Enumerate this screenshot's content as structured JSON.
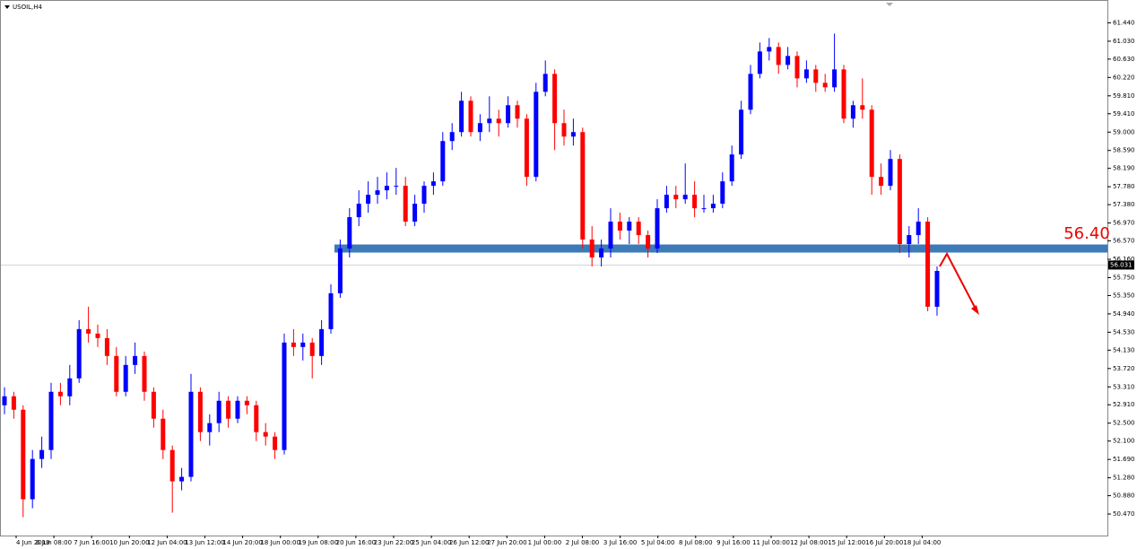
{
  "chart_data": {
    "type": "candlestick",
    "title": "USOIL,H4",
    "ylim": [
      49.99,
      61.95
    ],
    "yticks": [
      {
        "value": 61.44,
        "label": "61.440"
      },
      {
        "value": 61.03,
        "label": "61.030"
      },
      {
        "value": 60.63,
        "label": "60.630"
      },
      {
        "value": 60.22,
        "label": "60.220"
      },
      {
        "value": 59.81,
        "label": "59.810"
      },
      {
        "value": 59.41,
        "label": "59.410"
      },
      {
        "value": 59.0,
        "label": "59.000"
      },
      {
        "value": 58.59,
        "label": "58.590"
      },
      {
        "value": 58.19,
        "label": "58.190"
      },
      {
        "value": 57.78,
        "label": "57.780"
      },
      {
        "value": 57.38,
        "label": "57.380"
      },
      {
        "value": 56.97,
        "label": "56.970"
      },
      {
        "value": 56.57,
        "label": "56.570"
      },
      {
        "value": 56.16,
        "label": "56.160"
      },
      {
        "value": 55.75,
        "label": "55.750"
      },
      {
        "value": 55.35,
        "label": "55.350"
      },
      {
        "value": 54.94,
        "label": "54.940"
      },
      {
        "value": 54.53,
        "label": "54.530"
      },
      {
        "value": 54.13,
        "label": "54.130"
      },
      {
        "value": 53.72,
        "label": "53.720"
      },
      {
        "value": 53.31,
        "label": "53.310"
      },
      {
        "value": 52.91,
        "label": "52.910"
      },
      {
        "value": 52.5,
        "label": "52.500"
      },
      {
        "value": 52.1,
        "label": "52.100"
      },
      {
        "value": 51.69,
        "label": "51.690"
      },
      {
        "value": 51.28,
        "label": "51.280"
      },
      {
        "value": 50.88,
        "label": "50.880"
      },
      {
        "value": 50.47,
        "label": "50.470"
      }
    ],
    "xticks": [
      "4 Jun 2019",
      "6 Jun 08:00",
      "7 Jun 16:00",
      "10 Jun 20:00",
      "12 Jun 04:00",
      "13 Jun 12:00",
      "14 Jun 20:00",
      "18 Jun 00:00",
      "19 Jun 08:00",
      "20 Jun 16:00",
      "23 Jun 22:00",
      "25 Jun 04:00",
      "26 Jun 12:00",
      "27 Jun 20:00",
      "1 Jul 00:00",
      "2 Jul 08:00",
      "3 Jul 16:00",
      "5 Jul 04:00",
      "8 Jul 08:00",
      "9 Jul 16:00",
      "11 Jul 00:00",
      "12 Jul 08:00",
      "15 Jul 12:00",
      "16 Jul 20:00",
      "18 Jul 04:00"
    ],
    "up_color": "#0000ff",
    "down_color": "#ff0000",
    "last_price": 56.031,
    "support": {
      "value": 56.4,
      "label": "56.40",
      "color": "#3d7ab8"
    },
    "candles": [
      [
        52.9,
        53.3,
        52.7,
        53.1
      ],
      [
        53.1,
        53.2,
        52.6,
        52.8
      ],
      [
        52.8,
        52.9,
        50.4,
        50.8
      ],
      [
        50.8,
        51.9,
        50.6,
        51.7
      ],
      [
        51.7,
        52.2,
        51.5,
        51.9
      ],
      [
        51.9,
        53.4,
        51.7,
        53.2
      ],
      [
        53.2,
        53.4,
        52.9,
        53.1
      ],
      [
        53.1,
        53.8,
        52.9,
        53.5
      ],
      [
        53.5,
        54.8,
        53.4,
        54.6
      ],
      [
        54.6,
        55.1,
        54.3,
        54.5
      ],
      [
        54.5,
        54.7,
        54.2,
        54.4
      ],
      [
        54.4,
        54.6,
        53.8,
        54.0
      ],
      [
        54.0,
        54.2,
        53.1,
        53.2
      ],
      [
        53.2,
        54.0,
        53.1,
        53.8
      ],
      [
        53.8,
        54.3,
        53.6,
        54.0
      ],
      [
        54.0,
        54.1,
        53.0,
        53.2
      ],
      [
        53.2,
        53.3,
        52.4,
        52.6
      ],
      [
        52.6,
        52.8,
        51.7,
        51.9
      ],
      [
        51.9,
        52.0,
        50.5,
        51.2
      ],
      [
        51.2,
        51.5,
        51.0,
        51.3
      ],
      [
        51.3,
        53.6,
        51.2,
        53.2
      ],
      [
        53.2,
        53.3,
        52.1,
        52.3
      ],
      [
        52.3,
        52.7,
        52.0,
        52.5
      ],
      [
        52.5,
        53.2,
        52.3,
        53.0
      ],
      [
        53.0,
        53.1,
        52.4,
        52.6
      ],
      [
        52.6,
        53.1,
        52.5,
        53.0
      ],
      [
        53.0,
        53.1,
        52.7,
        52.9
      ],
      [
        52.9,
        53.0,
        52.1,
        52.3
      ],
      [
        52.3,
        52.5,
        52.0,
        52.2
      ],
      [
        52.2,
        52.3,
        51.7,
        51.9
      ],
      [
        51.9,
        54.5,
        51.8,
        54.3
      ],
      [
        54.3,
        54.6,
        54.0,
        54.2
      ],
      [
        54.2,
        54.5,
        53.9,
        54.3
      ],
      [
        54.3,
        54.4,
        53.5,
        54.0
      ],
      [
        54.0,
        54.8,
        53.8,
        54.6
      ],
      [
        54.6,
        55.6,
        54.5,
        55.4
      ],
      [
        55.4,
        56.6,
        55.3,
        56.4
      ],
      [
        56.4,
        57.3,
        56.2,
        57.1
      ],
      [
        57.1,
        57.7,
        56.9,
        57.4
      ],
      [
        57.4,
        57.9,
        57.2,
        57.6
      ],
      [
        57.6,
        58.0,
        57.4,
        57.7
      ],
      [
        57.7,
        58.1,
        57.5,
        57.8
      ],
      [
        57.8,
        58.2,
        57.6,
        57.8
      ],
      [
        57.8,
        58.0,
        56.9,
        57.0
      ],
      [
        57.0,
        57.6,
        56.9,
        57.4
      ],
      [
        57.4,
        57.9,
        57.2,
        57.8
      ],
      [
        57.8,
        58.1,
        57.6,
        57.9
      ],
      [
        57.9,
        59.0,
        57.8,
        58.8
      ],
      [
        58.8,
        59.2,
        58.6,
        59.0
      ],
      [
        59.0,
        59.9,
        58.9,
        59.7
      ],
      [
        59.7,
        59.8,
        58.9,
        59.0
      ],
      [
        59.0,
        59.4,
        58.8,
        59.2
      ],
      [
        59.2,
        59.8,
        59.0,
        59.3
      ],
      [
        59.3,
        59.5,
        58.9,
        59.2
      ],
      [
        59.2,
        59.8,
        59.1,
        59.6
      ],
      [
        59.6,
        59.7,
        59.1,
        59.3
      ],
      [
        59.3,
        59.4,
        57.8,
        58.0
      ],
      [
        58.0,
        60.1,
        57.9,
        59.9
      ],
      [
        59.9,
        60.6,
        59.8,
        60.3
      ],
      [
        60.3,
        60.4,
        58.6,
        59.2
      ],
      [
        59.2,
        59.5,
        58.7,
        58.9
      ],
      [
        58.9,
        59.3,
        58.7,
        59.0
      ],
      [
        59.0,
        59.1,
        56.4,
        56.6
      ],
      [
        56.6,
        56.9,
        56.0,
        56.2
      ],
      [
        56.2,
        56.6,
        56.0,
        56.4
      ],
      [
        56.4,
        57.3,
        56.2,
        57.0
      ],
      [
        57.0,
        57.2,
        56.6,
        56.8
      ],
      [
        56.8,
        57.1,
        56.5,
        57.0
      ],
      [
        57.0,
        57.1,
        56.5,
        56.7
      ],
      [
        56.7,
        56.8,
        56.2,
        56.4
      ],
      [
        56.4,
        57.5,
        56.3,
        57.3
      ],
      [
        57.3,
        57.8,
        57.2,
        57.6
      ],
      [
        57.6,
        57.8,
        57.3,
        57.5
      ],
      [
        57.5,
        58.3,
        57.4,
        57.6
      ],
      [
        57.6,
        57.9,
        57.1,
        57.3
      ],
      [
        57.3,
        57.6,
        57.2,
        57.3
      ],
      [
        57.3,
        57.6,
        57.2,
        57.4
      ],
      [
        57.4,
        58.1,
        57.3,
        57.9
      ],
      [
        57.9,
        58.7,
        57.8,
        58.5
      ],
      [
        58.5,
        59.7,
        58.4,
        59.5
      ],
      [
        59.5,
        60.5,
        59.4,
        60.3
      ],
      [
        60.3,
        61.0,
        60.2,
        60.8
      ],
      [
        60.8,
        61.1,
        60.6,
        60.9
      ],
      [
        60.9,
        61.0,
        60.3,
        60.5
      ],
      [
        60.5,
        60.9,
        60.4,
        60.7
      ],
      [
        60.7,
        60.8,
        60.0,
        60.2
      ],
      [
        60.2,
        60.6,
        60.1,
        60.4
      ],
      [
        60.4,
        60.5,
        59.9,
        60.1
      ],
      [
        60.1,
        60.3,
        59.9,
        60.0
      ],
      [
        60.0,
        61.2,
        59.9,
        60.4
      ],
      [
        60.4,
        60.5,
        59.2,
        59.3
      ],
      [
        59.3,
        59.7,
        59.1,
        59.6
      ],
      [
        59.6,
        60.2,
        59.3,
        59.5
      ],
      [
        59.5,
        59.6,
        57.6,
        58.0
      ],
      [
        58.0,
        58.3,
        57.6,
        57.8
      ],
      [
        57.8,
        58.6,
        57.7,
        58.4
      ],
      [
        58.4,
        58.5,
        56.3,
        56.5
      ],
      [
        56.5,
        56.9,
        56.2,
        56.7
      ],
      [
        56.7,
        57.3,
        56.5,
        57.0
      ],
      [
        57.0,
        57.1,
        55.0,
        55.1
      ],
      [
        55.1,
        56.0,
        54.9,
        55.9
      ]
    ]
  }
}
